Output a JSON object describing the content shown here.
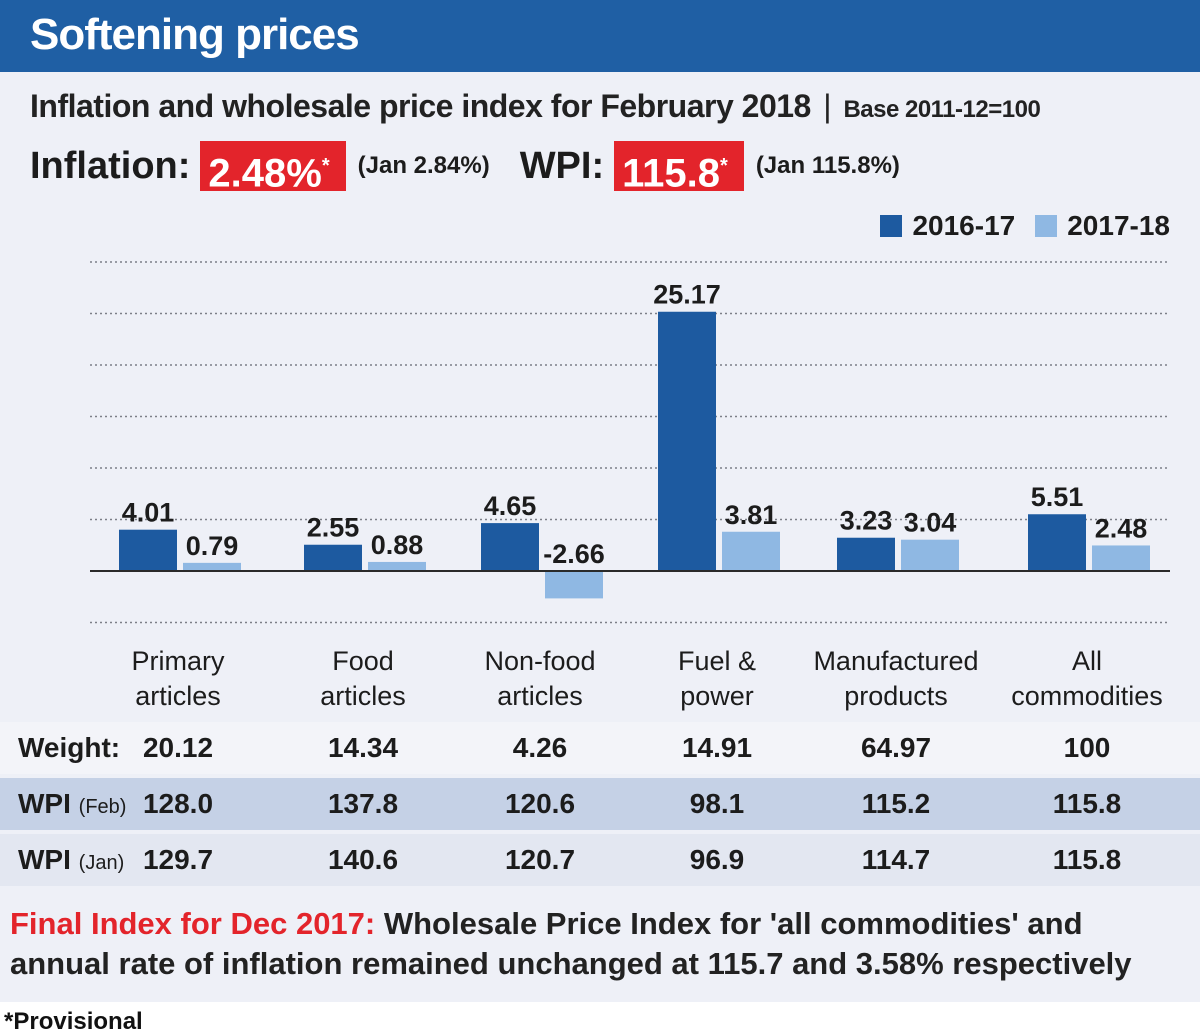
{
  "header": {
    "title": "Softening prices",
    "subtitle": "Inflation and wholesale price index for February 2018",
    "separator": "|",
    "base": "Base 2011-12=100"
  },
  "stats": {
    "inflation_label": "Inflation:",
    "inflation_value": "2.48%",
    "inflation_mark": "*",
    "inflation_note": "(Jan 2.84%)",
    "wpi_label": "WPI:",
    "wpi_value": "115.8",
    "wpi_mark": "*",
    "wpi_note": "(Jan 115.8%)"
  },
  "colors": {
    "banner": "#1f5fa4",
    "highlight": "#e3242b",
    "series_dark": "#1d5aa0",
    "series_light": "#8fb8e3"
  },
  "chart_data": {
    "type": "bar",
    "categories": [
      [
        "Primary",
        "articles"
      ],
      [
        "Food",
        "articles"
      ],
      [
        "Non-food",
        "articles"
      ],
      [
        "Fuel &",
        "power"
      ],
      [
        "Manufactured",
        "products"
      ],
      [
        "All",
        "commodities"
      ]
    ],
    "series": [
      {
        "name": "2016-17",
        "values": [
          4.01,
          2.55,
          4.65,
          25.17,
          3.23,
          5.51
        ],
        "labels": [
          "4.01",
          "2.55",
          "4.65",
          "25.17",
          "3.23",
          "5.51"
        ]
      },
      {
        "name": "2017-18",
        "values": [
          0.79,
          0.88,
          -2.66,
          3.81,
          3.04,
          2.48
        ],
        "labels": [
          "0.79",
          "0.88",
          "-2.66",
          "3.81",
          "3.04",
          "2.48"
        ]
      }
    ],
    "ylim": [
      -5,
      30
    ],
    "grid": true,
    "legend": "top-right",
    "title": "",
    "xlabel": "",
    "ylabel": ""
  },
  "table": {
    "rows": [
      {
        "label": "Weight:",
        "label_small": "",
        "values": [
          "20.12",
          "14.34",
          "4.26",
          "14.91",
          "64.97",
          "100"
        ]
      },
      {
        "label": "WPI",
        "label_small": "(Feb)",
        "values": [
          "128.0",
          "137.8",
          "120.6",
          "98.1",
          "115.2",
          "115.8"
        ]
      },
      {
        "label": "WPI",
        "label_small": "(Jan)",
        "values": [
          "129.7",
          "140.6",
          "120.7",
          "96.9",
          "114.7",
          "115.8"
        ]
      }
    ]
  },
  "note": {
    "heading": "Final Index for Dec 2017:",
    "body": "Wholesale Price Index for 'all commodities' and annual rate of inflation remained unchanged at 115.7 and 3.58% respectively"
  },
  "footnote": "*Provisional"
}
